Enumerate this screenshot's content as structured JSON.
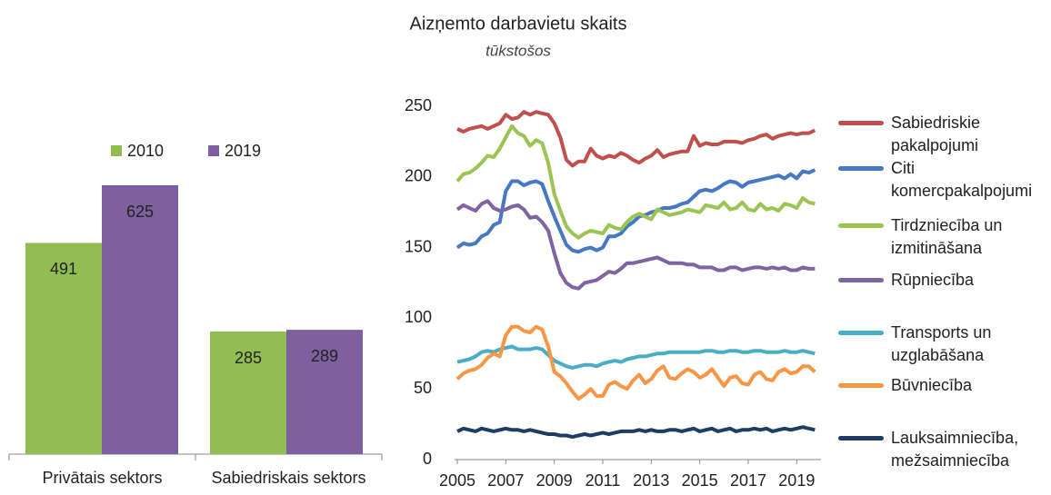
{
  "chart_data": [
    {
      "type": "bar",
      "categories": [
        "Privātais sektors",
        "Sabiedriskais sektors"
      ],
      "series": [
        {
          "name": "2010",
          "color": "#92bd52",
          "values": [
            491,
            285
          ]
        },
        {
          "name": "2019",
          "color": "#7e60a0",
          "values": [
            625,
            289
          ]
        }
      ]
    },
    {
      "type": "line",
      "title": "Aizņemto darbavietu skaits",
      "subtitle": "tūkstošos",
      "x": [
        2005,
        2005.25,
        2005.5,
        2005.75,
        2006,
        2006.25,
        2006.5,
        2006.75,
        2007,
        2007.25,
        2007.5,
        2007.75,
        2008,
        2008.25,
        2008.5,
        2008.75,
        2009,
        2009.25,
        2009.5,
        2009.75,
        2010,
        2010.25,
        2010.5,
        2010.75,
        2011,
        2011.25,
        2011.5,
        2011.75,
        2012,
        2012.25,
        2012.5,
        2012.75,
        2013,
        2013.25,
        2013.5,
        2013.75,
        2014,
        2014.25,
        2014.5,
        2014.75,
        2015,
        2015.25,
        2015.5,
        2015.75,
        2016,
        2016.25,
        2016.5,
        2016.75,
        2017,
        2017.25,
        2017.5,
        2017.75,
        2018,
        2018.25,
        2018.5,
        2018.75,
        2019,
        2019.25,
        2019.5,
        2019.75
      ],
      "xlim": [
        2005,
        2020
      ],
      "xticks": [
        2005,
        2007,
        2009,
        2011,
        2013,
        2015,
        2017,
        2019
      ],
      "ylim": [
        0,
        250
      ],
      "yticks": [
        0,
        50,
        100,
        150,
        200,
        250
      ],
      "series": [
        {
          "name": "Sabiedriskie pakalpojumi",
          "color": "#c0504d",
          "values": [
            234,
            232,
            234,
            235,
            236,
            234,
            236,
            238,
            244,
            241,
            242,
            246,
            244,
            246,
            245,
            244,
            238,
            228,
            212,
            208,
            211,
            211,
            220,
            215,
            213,
            215,
            214,
            217,
            215,
            212,
            210,
            213,
            215,
            219,
            214,
            216,
            217,
            218,
            218,
            229,
            222,
            224,
            223,
            223,
            225,
            225,
            225,
            224,
            226,
            227,
            229,
            230,
            227,
            229,
            230,
            231,
            230,
            231,
            231,
            233
          ]
        },
        {
          "name": "Citi komercpakalpojumi",
          "color": "#4678c3",
          "values": [
            150,
            153,
            152,
            153,
            158,
            160,
            166,
            168,
            190,
            197,
            197,
            194,
            196,
            197,
            195,
            183,
            172,
            162,
            152,
            148,
            147,
            149,
            150,
            148,
            150,
            158,
            158,
            160,
            165,
            168,
            172,
            173,
            175,
            176,
            178,
            178,
            179,
            181,
            182,
            186,
            190,
            191,
            190,
            192,
            195,
            197,
            196,
            193,
            196,
            197,
            198,
            199,
            200,
            201,
            199,
            202,
            199,
            204,
            203,
            205
          ]
        },
        {
          "name": "Tirdzniecība un izmitināšana",
          "color": "#9bc453",
          "values": [
            197,
            202,
            203,
            206,
            210,
            215,
            214,
            220,
            228,
            236,
            231,
            229,
            222,
            226,
            224,
            210,
            188,
            176,
            165,
            160,
            157,
            160,
            162,
            161,
            160,
            166,
            164,
            163,
            168,
            172,
            174,
            172,
            170,
            177,
            175,
            173,
            174,
            175,
            177,
            176,
            175,
            180,
            179,
            178,
            182,
            177,
            178,
            182,
            177,
            176,
            181,
            177,
            178,
            176,
            181,
            180,
            178,
            185,
            182,
            181
          ]
        },
        {
          "name": "Rūpniecība",
          "color": "#8064a2",
          "values": [
            177,
            180,
            178,
            176,
            181,
            183,
            178,
            176,
            177,
            179,
            180,
            177,
            171,
            172,
            168,
            162,
            146,
            132,
            125,
            122,
            121,
            125,
            126,
            127,
            130,
            133,
            132,
            135,
            139,
            139,
            140,
            141,
            142,
            143,
            141,
            139,
            139,
            139,
            138,
            138,
            136,
            136,
            136,
            134,
            134,
            136,
            136,
            134,
            135,
            136,
            136,
            135,
            136,
            135,
            136,
            134,
            134,
            136,
            135,
            135
          ]
        },
        {
          "name": "Transports un uzglabāšana",
          "color": "#4bacc6",
          "values": [
            69,
            70,
            71,
            73,
            76,
            77,
            76,
            78,
            79,
            80,
            78,
            78,
            78,
            79,
            78,
            74,
            70,
            68,
            66,
            65,
            66,
            67,
            67,
            66,
            68,
            69,
            70,
            69,
            71,
            72,
            73,
            73,
            74,
            75,
            75,
            76,
            76,
            76,
            76,
            76,
            76,
            77,
            77,
            76,
            76,
            77,
            77,
            76,
            76,
            77,
            77,
            76,
            76,
            76,
            77,
            76,
            76,
            77,
            76,
            75
          ]
        },
        {
          "name": "Būvniecība",
          "color": "#f79646",
          "values": [
            57,
            61,
            63,
            64,
            67,
            72,
            75,
            73,
            88,
            94,
            94,
            91,
            90,
            94,
            92,
            80,
            62,
            59,
            54,
            48,
            43,
            46,
            50,
            45,
            45,
            53,
            55,
            52,
            50,
            56,
            60,
            54,
            57,
            63,
            66,
            58,
            57,
            61,
            64,
            62,
            58,
            60,
            64,
            58,
            52,
            58,
            59,
            54,
            53,
            60,
            62,
            57,
            56,
            62,
            64,
            61,
            62,
            66,
            66,
            62
          ]
        },
        {
          "name": "Lauksaimniecība, mežsaimniecība",
          "color": "#1f3c64",
          "values": [
            20,
            22,
            21,
            20,
            22,
            21,
            20,
            21,
            22,
            21,
            21,
            20,
            21,
            20,
            19,
            18,
            18,
            17,
            17,
            16,
            17,
            18,
            17,
            18,
            19,
            18,
            19,
            20,
            20,
            20,
            21,
            20,
            21,
            20,
            20,
            21,
            21,
            20,
            21,
            22,
            20,
            21,
            22,
            20,
            21,
            22,
            20,
            21,
            21,
            22,
            21,
            22,
            20,
            21,
            22,
            21,
            22,
            23,
            22,
            21
          ]
        }
      ]
    }
  ]
}
